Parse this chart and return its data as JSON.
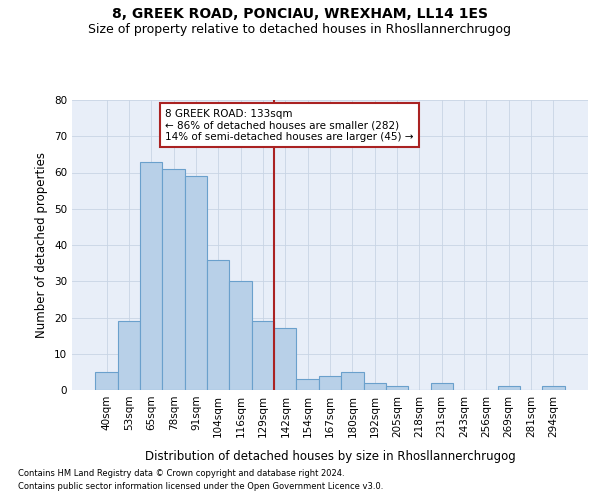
{
  "title": "8, GREEK ROAD, PONCIAU, WREXHAM, LL14 1ES",
  "subtitle": "Size of property relative to detached houses in Rhosllannerchrugog",
  "xlabel": "Distribution of detached houses by size in Rhosllannerchrugog",
  "ylabel": "Number of detached properties",
  "categories": [
    "40sqm",
    "53sqm",
    "65sqm",
    "78sqm",
    "91sqm",
    "104sqm",
    "116sqm",
    "129sqm",
    "142sqm",
    "154sqm",
    "167sqm",
    "180sqm",
    "192sqm",
    "205sqm",
    "218sqm",
    "231sqm",
    "243sqm",
    "256sqm",
    "269sqm",
    "281sqm",
    "294sqm"
  ],
  "values": [
    5,
    19,
    63,
    61,
    59,
    36,
    30,
    19,
    17,
    3,
    4,
    5,
    2,
    1,
    0,
    2,
    0,
    0,
    1,
    0,
    1
  ],
  "bar_color": "#b8d0e8",
  "bar_edge_color": "#6aa0cc",
  "grid_color": "#c8d4e4",
  "background_color": "#e8eef8",
  "vline_x_index": 7,
  "vline_color": "#aa2222",
  "annotation_text": "8 GREEK ROAD: 133sqm\n← 86% of detached houses are smaller (282)\n14% of semi-detached houses are larger (45) →",
  "annotation_box_color": "#ffffff",
  "annotation_box_edge_color": "#aa2222",
  "ylim": [
    0,
    80
  ],
  "yticks": [
    0,
    10,
    20,
    30,
    40,
    50,
    60,
    70,
    80
  ],
  "footer1": "Contains HM Land Registry data © Crown copyright and database right 2024.",
  "footer2": "Contains public sector information licensed under the Open Government Licence v3.0.",
  "title_fontsize": 10,
  "subtitle_fontsize": 9,
  "tick_fontsize": 7.5,
  "ylabel_fontsize": 8.5,
  "xlabel_fontsize": 8.5,
  "annotation_fontsize": 7.5
}
